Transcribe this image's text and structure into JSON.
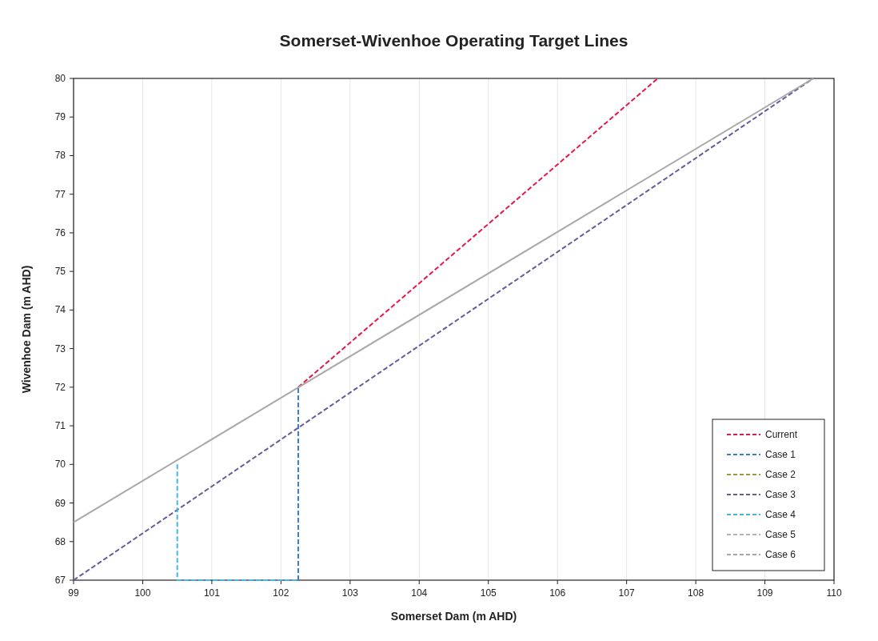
{
  "chart_data": {
    "type": "line",
    "title": "Somerset-Wivenhoe Operating Target Lines",
    "xlabel": "Somerset Dam (m AHD)",
    "ylabel": "Wivenhoe Dam (m AHD)",
    "xlim": [
      99,
      110
    ],
    "xticks": [
      99,
      100,
      101,
      102,
      103,
      104,
      105,
      106,
      107,
      108,
      109,
      110
    ],
    "ylim": [
      67,
      80
    ],
    "yticks": [
      67,
      68,
      69,
      70,
      71,
      72,
      73,
      74,
      75,
      76,
      77,
      78,
      79,
      80
    ],
    "grid": "x",
    "legend": "bottom right",
    "marker": "none",
    "series": [
      {
        "name": "Current",
        "color": "#e8174a",
        "line_style": "dashed",
        "x": [
          102.25,
          107.45
        ],
        "values": [
          72,
          80
        ]
      },
      {
        "name": "Case 1",
        "color": "#3a7fc0",
        "line_style": "dashed",
        "x": [
          102.25,
          102.25
        ],
        "values": [
          67,
          72
        ]
      },
      {
        "name": "Case 2",
        "color": "#9a9a40",
        "line_style": "dashed"
      },
      {
        "name": "Case 3",
        "color": "#6a5a9c",
        "line_style": "dashed",
        "x": [
          99,
          109.7
        ],
        "values": [
          67,
          80
        ]
      },
      {
        "name": "Case 4",
        "color": "#40b8e0",
        "line_style": "dashed",
        "x": [
          100.5,
          100.5,
          102.25
        ],
        "values": [
          70,
          67,
          67
        ]
      },
      {
        "name": "Case 5",
        "color": "#b0b0b8",
        "line_style": "dashed"
      },
      {
        "name": "Case 6",
        "color": "#a8a8a8",
        "line_style": "solid",
        "x": [
          99,
          109.7
        ],
        "values": [
          68.5,
          80
        ]
      }
    ]
  }
}
